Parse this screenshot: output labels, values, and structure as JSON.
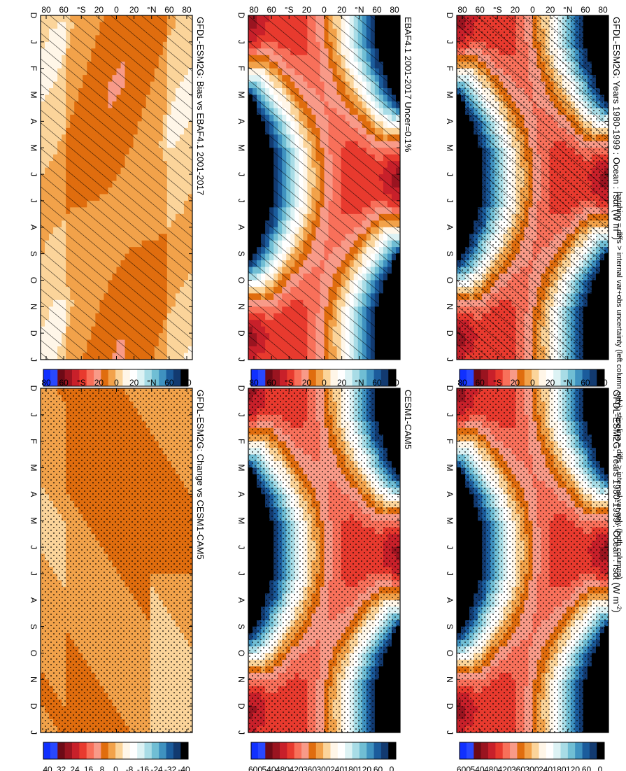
{
  "figure": {
    "footnote": "hatching = diffs > internal var+obs uncertainty (left column only); stippling = diffs > internal var only (both columns)"
  },
  "colors": {
    "abs_scale": [
      "#1030ff",
      "#2848ff",
      "#6e0a16",
      "#9a1420",
      "#c8202a",
      "#e83a2e",
      "#f8705a",
      "#f89a88",
      "#e06d0e",
      "#f2a24a",
      "#fbd49a",
      "#fff6e8",
      "#ffffff",
      "#dcf2f4",
      "#a8dce6",
      "#70bed4",
      "#3f92c0",
      "#1b5c9c",
      "#123a70",
      "#000000"
    ],
    "diff_scale": [
      "#1030ff",
      "#2848ff",
      "#6e0a16",
      "#9a1420",
      "#c8202a",
      "#e83a2e",
      "#f8705a",
      "#f89a88",
      "#e06d0e",
      "#f2a24a",
      "#fbd49a",
      "#fff6e8",
      "#ffffff",
      "#dcf2f4",
      "#a8dce6",
      "#70bed4",
      "#3f92c0",
      "#1b5c9c",
      "#123a70",
      "#000000"
    ]
  },
  "chart_data": [
    {
      "type": "heatmap",
      "id": "p1",
      "title": "GFDL-ESM2G: Years 1980-1999 : Ocean : rsdt (W m",
      "title_sup": "-2",
      "title_close": ")",
      "x_ticks": [
        "D",
        "J",
        "F",
        "M",
        "A",
        "M",
        "J",
        "J",
        "A",
        "S",
        "O",
        "N",
        "D",
        "J"
      ],
      "y_ticks": [
        "80",
        "60",
        "°N",
        "20",
        "0",
        "20",
        "°S",
        "60",
        "80"
      ],
      "ylim": [
        -90,
        90
      ],
      "colorbar_labels": [
        "600",
        "540",
        "480",
        "420",
        "360",
        "300",
        "240",
        "180",
        "120",
        "60",
        "0"
      ],
      "overlay": "hatching+stippling",
      "variable": "TOA incident shortwave (rsdt), ocean"
    },
    {
      "type": "heatmap",
      "id": "p2",
      "title": "GFDL-ESM2G: Years 1980-1999 : Ocean : rsdt (W m",
      "title_sup": "-2",
      "title_close": ")",
      "x_ticks": [
        "D",
        "J",
        "F",
        "M",
        "A",
        "M",
        "J",
        "J",
        "A",
        "S",
        "O",
        "N",
        "D",
        "J"
      ],
      "y_ticks": [
        "80",
        "60",
        "°N",
        "20",
        "0",
        "20",
        "°S",
        "60",
        "80"
      ],
      "ylim": [
        -90,
        90
      ],
      "colorbar_labels": [
        "600",
        "540",
        "480",
        "420",
        "360",
        "300",
        "240",
        "180",
        "120",
        "60",
        "0"
      ],
      "overlay": "stippling"
    },
    {
      "type": "heatmap",
      "id": "p3",
      "title": "EBAF4.1 2001-2017 Uncer=0.1%",
      "x_ticks": [
        "D",
        "J",
        "F",
        "M",
        "A",
        "M",
        "J",
        "J",
        "A",
        "S",
        "O",
        "N",
        "D",
        "J"
      ],
      "y_ticks": [
        "80",
        "60",
        "°N",
        "20",
        "0",
        "20",
        "°S",
        "60",
        "80"
      ],
      "ylim": [
        -90,
        90
      ],
      "colorbar_labels": [
        "600",
        "540",
        "480",
        "420",
        "360",
        "300",
        "240",
        "180",
        "120",
        "60",
        "0"
      ],
      "overlay": "hatching"
    },
    {
      "type": "heatmap",
      "id": "p4",
      "title": "CESM1-CAM5",
      "x_ticks": [
        "D",
        "J",
        "F",
        "M",
        "A",
        "M",
        "J",
        "J",
        "A",
        "S",
        "O",
        "N",
        "D",
        "J"
      ],
      "y_ticks": [
        "80",
        "60",
        "°N",
        "20",
        "0",
        "20",
        "°S",
        "60",
        "80"
      ],
      "ylim": [
        -90,
        90
      ],
      "colorbar_labels": [
        "600",
        "540",
        "480",
        "420",
        "360",
        "300",
        "240",
        "180",
        "120",
        "60",
        "0"
      ],
      "overlay": "stippling"
    },
    {
      "type": "heatmap",
      "id": "p5",
      "title": "GFDL-ESM2G: Bias vs EBAF4.1 2001-2017",
      "x_ticks": [
        "D",
        "J",
        "F",
        "M",
        "A",
        "M",
        "J",
        "J",
        "A",
        "S",
        "O",
        "N",
        "D",
        "J"
      ],
      "y_ticks": [
        "80",
        "60",
        "°N",
        "20",
        "0",
        "20",
        "°S",
        "60",
        "80"
      ],
      "ylim": [
        -90,
        90
      ],
      "colorbar_labels": [
        "40",
        "32",
        "24",
        "16",
        "8",
        "0",
        "-8",
        "-16",
        "-24",
        "-32",
        "-40"
      ],
      "overlay": "hatching"
    },
    {
      "type": "heatmap",
      "id": "p6",
      "title": "GFDL-ESM2G: Change vs CESM1-CAM5",
      "x_ticks": [
        "D",
        "J",
        "F",
        "M",
        "A",
        "M",
        "J",
        "J",
        "A",
        "S",
        "O",
        "N",
        "D",
        "J"
      ],
      "y_ticks": [
        "80",
        "60",
        "°N",
        "20",
        "0",
        "20",
        "°S",
        "60",
        "80"
      ],
      "ylim": [
        -90,
        90
      ],
      "colorbar_labels": [
        "40",
        "32",
        "24",
        "16",
        "8",
        "0",
        "-8",
        "-16",
        "-24",
        "-32",
        "-40"
      ],
      "overlay": "stippling"
    }
  ]
}
